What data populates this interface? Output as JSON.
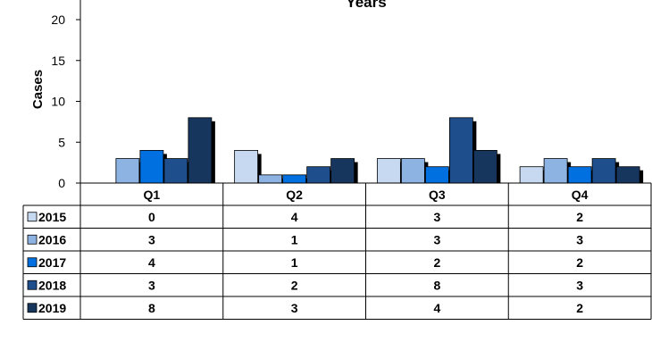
{
  "chart_data": {
    "type": "bar",
    "title": "Years",
    "ylabel": "Cases",
    "xlabel": "",
    "categories": [
      "Q1",
      "Q2",
      "Q3",
      "Q4"
    ],
    "ylim": [
      0,
      20
    ],
    "yticks": [
      0,
      5,
      10,
      15,
      20
    ],
    "legend": "data-table-left",
    "grid": false,
    "series": [
      {
        "name": "2015",
        "color": "#c6d9f1",
        "values": [
          0,
          4,
          3,
          2
        ]
      },
      {
        "name": "2016",
        "color": "#8db3e2",
        "values": [
          3,
          1,
          3,
          3
        ]
      },
      {
        "name": "2017",
        "color": "#0070e0",
        "values": [
          4,
          1,
          2,
          2
        ]
      },
      {
        "name": "2018",
        "color": "#1f4e8c",
        "values": [
          3,
          2,
          8,
          3
        ]
      },
      {
        "name": "2019",
        "color": "#17365d",
        "values": [
          8,
          3,
          4,
          2
        ]
      }
    ]
  }
}
